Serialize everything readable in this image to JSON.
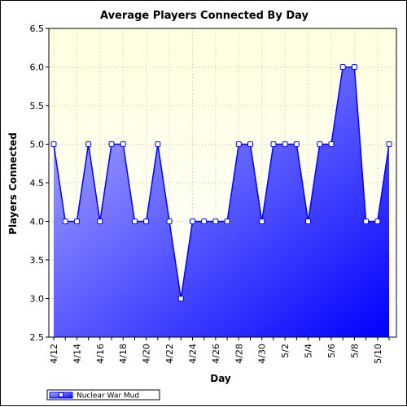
{
  "chart_data": {
    "type": "area",
    "title": "Average Players Connected By Day",
    "xlabel": "Day",
    "ylabel": "Players Connected",
    "ylim": [
      2.5,
      6.5
    ],
    "y_ticks": [
      "2.5",
      "3.0",
      "3.5",
      "4.0",
      "4.5",
      "5.0",
      "5.5",
      "6.0",
      "6.5"
    ],
    "x": [
      "4/12",
      "4/13",
      "4/14",
      "4/15",
      "4/16",
      "4/17",
      "4/18",
      "4/19",
      "4/20",
      "4/21",
      "4/22",
      "4/23",
      "4/24",
      "4/25",
      "4/26",
      "4/27",
      "4/28",
      "4/29",
      "4/30",
      "5/1",
      "5/2",
      "5/3",
      "5/4",
      "5/5",
      "5/6",
      "5/7",
      "5/8",
      "5/9",
      "5/10",
      "5/11"
    ],
    "x_tick_labels": [
      "4/12",
      "4/14",
      "4/16",
      "4/18",
      "4/20",
      "4/22",
      "4/24",
      "4/26",
      "4/28",
      "4/30",
      "5/2",
      "5/4",
      "5/6",
      "5/8",
      "5/10"
    ],
    "series": [
      {
        "name": "Nuclear War Mud",
        "values": [
          5,
          4,
          4,
          5,
          4,
          5,
          5,
          4,
          4,
          5,
          4,
          3,
          4,
          4,
          4,
          4,
          5,
          5,
          4,
          5,
          5,
          5,
          4,
          5,
          5,
          6,
          6,
          4,
          4,
          5
        ]
      }
    ],
    "grid": true,
    "legend_position": "bottom-left",
    "colors": {
      "plot_background_top": "#ffffe0",
      "plot_background_bottom": "#ffffff",
      "fill_light": "#b4b4ff",
      "fill_dark": "#0000ff",
      "line": "#0000ff",
      "marker_fill": "#ffffff",
      "grid": "#c8c8a0"
    }
  }
}
